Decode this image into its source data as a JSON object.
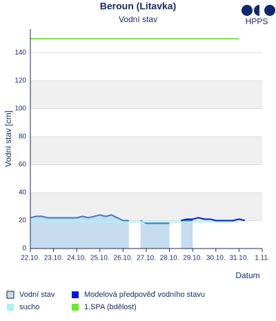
{
  "logo": "HPPS",
  "chart_data": {
    "type": "line",
    "title": "Beroun (Litavka)",
    "subtitle": "Vodní stav",
    "y_label": "Vodní stav [cm]",
    "x_label": "Datum",
    "xlim": [
      22,
      32
    ],
    "ylim": [
      0,
      157
    ],
    "xticks": [
      {
        "value": 22,
        "label": "22.10."
      },
      {
        "value": 23,
        "label": "23.10."
      },
      {
        "value": 24,
        "label": "24.10."
      },
      {
        "value": 25,
        "label": "25.10."
      },
      {
        "value": 26,
        "label": "26.10."
      },
      {
        "value": 27,
        "label": "27.10."
      },
      {
        "value": 28,
        "label": "28.10."
      },
      {
        "value": 29,
        "label": "29.10."
      },
      {
        "value": 30,
        "label": "30.10."
      },
      {
        "value": 31,
        "label": "31.10."
      },
      {
        "value": 32,
        "label": "1.11."
      }
    ],
    "yticks": [
      0,
      20,
      40,
      60,
      80,
      100,
      120,
      140
    ],
    "grid": true,
    "series": [
      {
        "name": "Vodní stav",
        "color": "#3d7ab8",
        "fill": "#c6dcf0",
        "area": true,
        "x": [
          22,
          22.25,
          22.5,
          22.75,
          23,
          23.25,
          23.5,
          23.75,
          24,
          24.25,
          24.5,
          24.75,
          25,
          25.25,
          25.5,
          25.75,
          26,
          26.25,
          26.5,
          26.75,
          27,
          27.25,
          27.5,
          27.75,
          28,
          28.25,
          28.5,
          28.75,
          29
        ],
        "values": [
          22,
          23,
          23,
          22,
          22,
          22,
          22,
          22,
          22,
          23,
          22,
          23,
          24,
          23,
          24,
          22,
          20,
          20,
          null,
          20,
          18,
          18,
          18,
          18,
          18,
          null,
          20,
          20,
          20
        ]
      },
      {
        "name": "Modelová předpověď vodního stavu",
        "color": "#0018e0",
        "x": [
          28.5,
          28.75,
          29,
          29.25,
          29.5,
          29.75,
          30,
          30.25,
          30.5,
          30.75,
          31,
          31.25
        ],
        "values": [
          20,
          21,
          21,
          22,
          21,
          21,
          20,
          20,
          20,
          20,
          21,
          20
        ]
      },
      {
        "name": "sucho",
        "color": "#a8f4f4",
        "x": [
          22,
          31.0
        ],
        "values": [
          19,
          19
        ]
      },
      {
        "name": "1.SPA (bdělost)",
        "color": "#66ee22",
        "x": [
          22,
          31.0
        ],
        "values": [
          150,
          150
        ]
      }
    ]
  }
}
